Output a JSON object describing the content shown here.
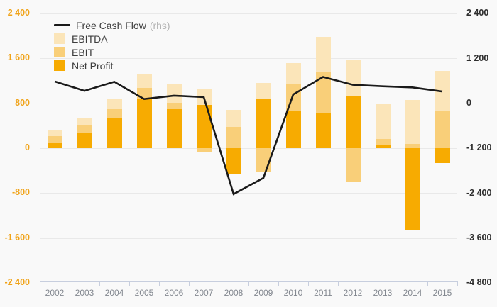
{
  "legend": {
    "fcf": "Free Cash Flow",
    "rhs": "(rhs)",
    "ebitda": "EBITDA",
    "ebit": "EBIT",
    "net_profit": "Net Profit"
  },
  "chart_data": {
    "type": "combo-overlapping-bars-and-line",
    "background": "#f9f9f9",
    "grid": true,
    "legend_position": "top-left",
    "categories": [
      "2002",
      "2003",
      "2004",
      "2005",
      "2006",
      "2007",
      "2008",
      "2009",
      "2010",
      "2011",
      "2012",
      "2013",
      "2014",
      "2015"
    ],
    "bar_series": [
      {
        "name": "EBITDA",
        "axis": "left",
        "color": "#FBE5B9",
        "values": [
          320,
          540,
          890,
          1330,
          1140,
          1060,
          680,
          1160,
          1520,
          1990,
          1580,
          800,
          860,
          1380
        ]
      },
      {
        "name": "EBIT",
        "axis": "left",
        "color": "#F9CF79",
        "values": [
          210,
          400,
          700,
          1080,
          810,
          -60,
          380,
          -430,
          1140,
          1370,
          -600,
          170,
          75,
          660
        ]
      },
      {
        "name": "Net Profit",
        "axis": "left",
        "color": "#F7AB01",
        "values": [
          100,
          280,
          540,
          890,
          690,
          770,
          -460,
          880,
          660,
          630,
          920,
          50,
          -1450,
          -260
        ]
      }
    ],
    "line_series": {
      "name": "Free Cash Flow",
      "axis": "right",
      "color": "#1a1a1a",
      "values": [
        590,
        340,
        580,
        120,
        210,
        170,
        -2420,
        -1990,
        240,
        710,
        500,
        460,
        430,
        320
      ]
    },
    "left_axis": {
      "min": -2400,
      "max": 2400,
      "ticks": [
        {
          "label": "2 400",
          "value": 2400
        },
        {
          "label": "1 600",
          "value": 1600
        },
        {
          "label": "800",
          "value": 800
        },
        {
          "label": "0",
          "value": 0
        },
        {
          "label": "-800",
          "value": -800
        },
        {
          "label": "-1 600",
          "value": -1600
        },
        {
          "label": "-2 400",
          "value": -2400
        }
      ]
    },
    "right_axis": {
      "min": -4800,
      "max": 2400,
      "ticks": [
        {
          "label": "2 400",
          "value": 2400
        },
        {
          "label": "1 200",
          "value": 1200
        },
        {
          "label": "0",
          "value": 0
        },
        {
          "label": "-1 200",
          "value": -1200
        },
        {
          "label": "-2 400",
          "value": -2400
        },
        {
          "label": "-3 600",
          "value": -3600
        },
        {
          "label": "-4 800",
          "value": -4800
        }
      ]
    }
  }
}
